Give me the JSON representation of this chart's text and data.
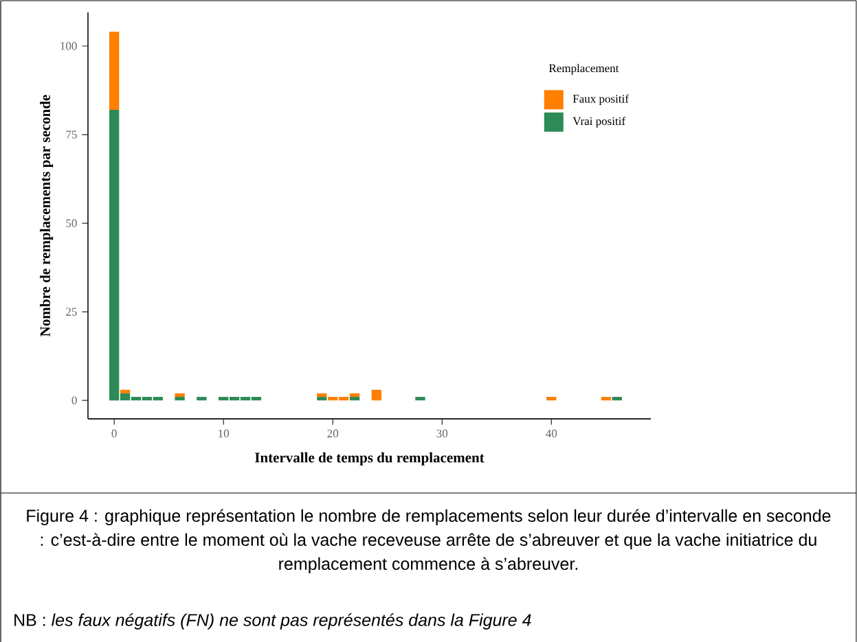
{
  "chart_data": {
    "type": "bar",
    "stacked": true,
    "xlabel": "Intervalle de temps du remplacement",
    "ylabel": "Nombre de remplacements par seconde",
    "legend_title": "Remplacement",
    "legend": "top right",
    "grid": false,
    "x": [
      0,
      1,
      2,
      3,
      4,
      6,
      8,
      10,
      11,
      12,
      13,
      19,
      20,
      21,
      22,
      24,
      28,
      40,
      45,
      46
    ],
    "series": [
      {
        "name": "Vrai positif",
        "color": "#2e8b57",
        "values": [
          82,
          2,
          1,
          1,
          1,
          1,
          1,
          1,
          1,
          1,
          1,
          1,
          null,
          null,
          1,
          null,
          1,
          null,
          null,
          1
        ]
      },
      {
        "name": "Faux positif",
        "color": "#ff7f00",
        "values": [
          22,
          1,
          null,
          null,
          null,
          1,
          null,
          null,
          null,
          null,
          null,
          1,
          1,
          1,
          1,
          3,
          null,
          1,
          1,
          null
        ]
      }
    ],
    "xlim": [
      -2.4,
      49.1
    ],
    "ylim": [
      -5.2,
      109.5
    ],
    "xticks": [
      0,
      10,
      20,
      30,
      40
    ],
    "yticks": [
      0,
      25,
      50,
      75,
      100
    ],
    "annotations": [
      "Figure 4 : graphique représentation le nombre de remplacements selon leur durée d’intervalle en seconde : c’est-à-dire entre le moment où la vache receveuse arrête de s’abreuver et que la vache initiatrice du remplacement commence à s’abreuver.",
      "NB : *les faux négatifs (FN) ne sont pas représentés dans la Figure 4*"
    ]
  }
}
